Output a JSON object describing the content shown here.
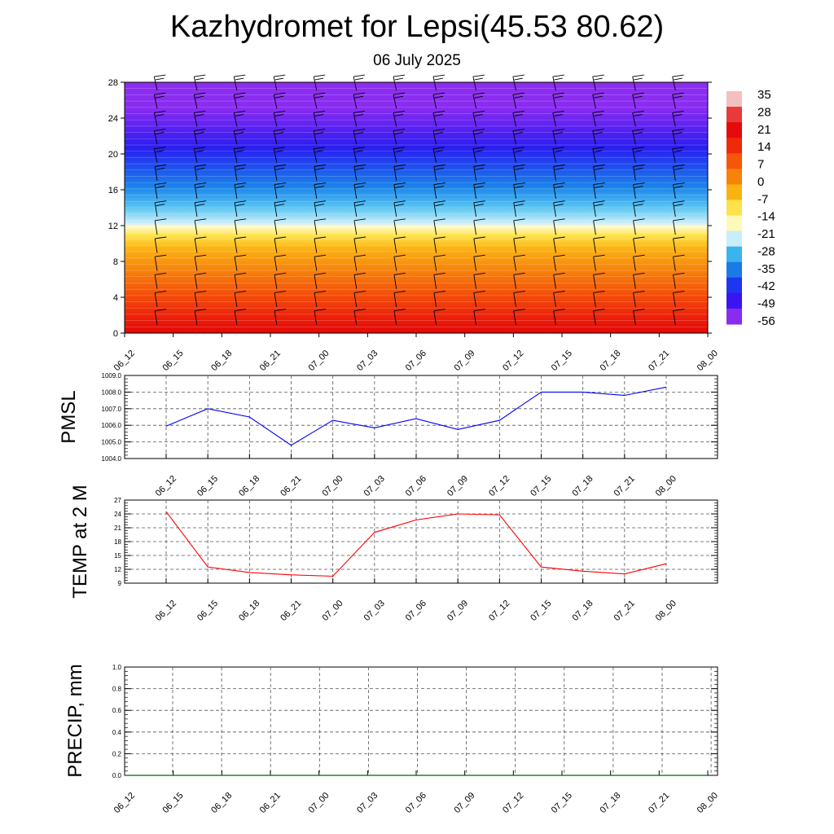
{
  "title": "Kazhydromet for Lepsi(45.53 80.62)",
  "subtitle": "06 July 2025",
  "time_labels": [
    "06_12",
    "06_15",
    "06_18",
    "06_21",
    "07_00",
    "07_03",
    "07_06",
    "07_09",
    "07_12",
    "07_15",
    "07_18",
    "07_21",
    "08_00"
  ],
  "chart_data": [
    {
      "type": "heatmap",
      "y_ticks": [
        0,
        4,
        8,
        12,
        16,
        20,
        24,
        28
      ],
      "ylim": [
        0,
        28
      ],
      "x": [
        "06_12",
        "06_15",
        "06_18",
        "06_21",
        "07_00",
        "07_03",
        "07_06",
        "07_09",
        "07_12",
        "07_15",
        "07_18",
        "07_21",
        "08_00"
      ],
      "colorbar_labels": [
        35,
        28,
        21,
        14,
        7,
        0,
        -7,
        -14,
        -21,
        -28,
        -35,
        -42,
        -49,
        -56
      ],
      "colorbar_colors": [
        "#f3c0c0",
        "#e83a3a",
        "#e60a0a",
        "#ee2a0a",
        "#f5560a",
        "#f8820a",
        "#fab20f",
        "#fde24a",
        "#fef9b8",
        "#c8eefb",
        "#3ab4ec",
        "#1a7ae8",
        "#1e36f0",
        "#3a14f2",
        "#8a2cf0"
      ],
      "wind_barbs": true
    },
    {
      "type": "line",
      "ylabel": "PMSL",
      "x": [
        "06_12",
        "06_15",
        "06_18",
        "06_21",
        "07_00",
        "07_03",
        "07_06",
        "07_09",
        "07_12",
        "07_15",
        "07_18",
        "07_21",
        "08_00"
      ],
      "values": [
        1005.95,
        1007.0,
        1006.5,
        1004.8,
        1006.3,
        1005.85,
        1006.4,
        1005.75,
        1006.3,
        1008.0,
        1008.0,
        1007.8,
        1008.3
      ],
      "ylim": [
        1004.0,
        1009.0
      ],
      "y_ticks": [
        "1004.0",
        "1005.0",
        "1006.0",
        "1007.0",
        "1008.0",
        "1009.0"
      ],
      "color": "#0000ff",
      "grid": true
    },
    {
      "type": "line",
      "ylabel": "TEMP at 2 M",
      "x": [
        "06_12",
        "06_15",
        "06_18",
        "06_21",
        "07_00",
        "07_03",
        "07_06",
        "07_09",
        "07_12",
        "07_15",
        "07_18",
        "07_21",
        "08_00"
      ],
      "values": [
        24.5,
        12.5,
        11.3,
        10.8,
        10.5,
        20.0,
        22.7,
        24.0,
        23.8,
        12.5,
        11.6,
        11.0,
        13.2
      ],
      "ylim": [
        9,
        27
      ],
      "y_ticks": [
        "9",
        "12",
        "15",
        "18",
        "21",
        "24",
        "27"
      ],
      "color": "#ff0000",
      "grid": true
    },
    {
      "type": "line",
      "ylabel": "PRECIP, mm",
      "x": [
        "06_12",
        "06_15",
        "06_18",
        "06_21",
        "07_00",
        "07_03",
        "07_06",
        "07_09",
        "07_12",
        "07_15",
        "07_18",
        "07_21",
        "08_00"
      ],
      "values": [
        0,
        0,
        0,
        0,
        0,
        0,
        0,
        0,
        0,
        0,
        0,
        0,
        0
      ],
      "ylim": [
        0,
        1
      ],
      "y_ticks": [
        "0.0",
        "0.2",
        "0.4",
        "0.6",
        "0.8",
        "1.0"
      ],
      "color": "#006400",
      "grid": true
    }
  ]
}
